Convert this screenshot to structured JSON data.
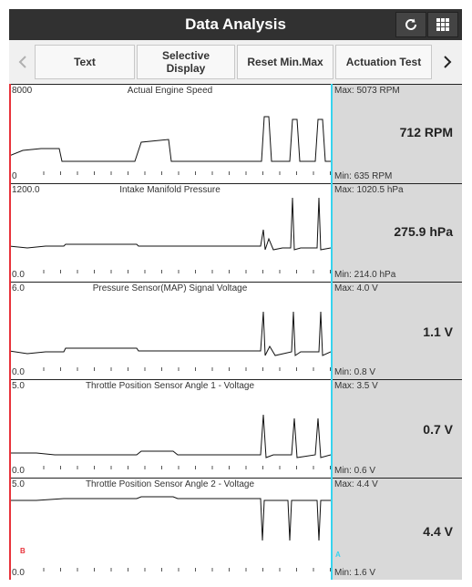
{
  "header": {
    "title": "Data Analysis",
    "refresh_icon": "refresh-icon",
    "menu_icon": "grid-menu-icon"
  },
  "toolbar": {
    "buttons": [
      "Text",
      "Selective\nDisplay",
      "Reset Min.Max",
      "Actuation Test"
    ],
    "left_icon": "chevron-left-icon",
    "right_icon": "chevron-right-icon"
  },
  "colors": {
    "header_bg": "#313131",
    "cursor_a": "#37d4ee",
    "cursor_b": "#e8323a",
    "side_bg": "#d9d9d9"
  },
  "cursors": {
    "a": "A",
    "b": "B"
  },
  "panels": [
    {
      "title": "Actual Engine Speed",
      "y_max": "8000",
      "y_min": "0",
      "max": "Max: 5073 RPM",
      "min": "Min: 635 RPM",
      "value": "712 RPM"
    },
    {
      "title": "Intake Manifold Pressure",
      "y_max": "1200.0",
      "y_min": "0.0",
      "max": "Max: 1020.5 hPa",
      "min": "Min: 214.0 hPa",
      "value": "275.9 hPa"
    },
    {
      "title": "Pressure Sensor(MAP) Signal Voltage",
      "y_max": "6.0",
      "y_min": "0.0",
      "max": "Max: 4.0 V",
      "min": "Min: 0.8 V",
      "value": "1.1 V"
    },
    {
      "title": "Throttle Position Sensor Angle 1 - Voltage",
      "y_max": "5.0",
      "y_min": "0.0",
      "max": "Max: 3.5 V",
      "min": "Min: 0.6 V",
      "value": "0.7 V"
    },
    {
      "title": "Throttle Position Sensor Angle 2 - Voltage",
      "y_max": "5.0",
      "y_min": "0.0",
      "max": "Max: 4.4 V",
      "min": "Min: 1.6 V",
      "value": "4.4 V"
    }
  ]
}
